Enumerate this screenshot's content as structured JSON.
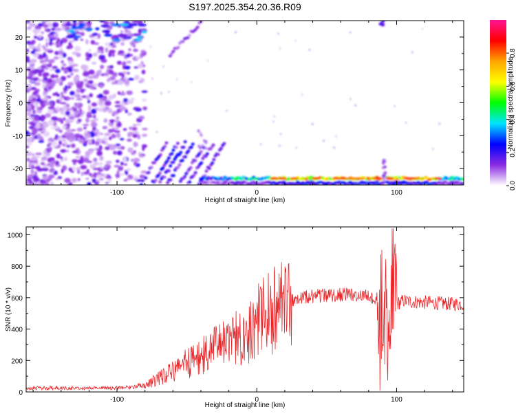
{
  "title": "S197.2025.354.20.36.R09",
  "colors": {
    "snr_line": "#e8262a",
    "axis": "#000000",
    "background": "#ffffff"
  },
  "spectrogram": {
    "type": "heatmap",
    "xlabel": "Height of straight line (km)",
    "ylabel": "Frequency (Hz)",
    "xlim": [
      -165,
      148
    ],
    "ylim": [
      -25,
      25
    ],
    "x_ticks": [
      -100,
      0,
      100
    ],
    "x_tick_labels": [
      "-100",
      "0",
      "100"
    ],
    "y_ticks": [
      -20,
      -10,
      0,
      10,
      20
    ],
    "y_tick_labels": [
      "-20",
      "-10",
      "0",
      "10",
      "20"
    ],
    "colorbar": {
      "label": "Normalized spectral amplitude",
      "range": [
        0,
        1
      ],
      "ticks": [
        0.0,
        0.2,
        0.4,
        0.6,
        0.8
      ],
      "tick_labels": [
        "0.0",
        "0.2",
        "0.4",
        "0.6",
        "0.8"
      ],
      "stops": [
        "#ffffff",
        "#8a2be2",
        "#0000ff",
        "#00e5ff",
        "#00ff00",
        "#ffff00",
        "#ffa500",
        "#ff0000",
        "#ff1493"
      ]
    },
    "features": {
      "noise_region_x": [
        -165,
        -80
      ],
      "band_frequency": -23,
      "band_x": [
        -40,
        148
      ],
      "band_peak_x": [
        10,
        130
      ],
      "rise_region_x": [
        -85,
        -30
      ],
      "feature_at_x": 90
    }
  },
  "snr": {
    "type": "line",
    "xlabel": "Height of straight line (km)",
    "ylabel": "SNR (10 * v/v)",
    "xlim": [
      -165,
      148
    ],
    "ylim": [
      0,
      1050
    ],
    "x_ticks": [
      -100,
      0,
      100
    ],
    "x_tick_labels": [
      "-100",
      "0",
      "100"
    ],
    "y_ticks": [
      0,
      200,
      400,
      600,
      800,
      1000
    ],
    "y_tick_labels": [
      "0",
      "200",
      "400",
      "600",
      "800",
      "1000"
    ]
  },
  "chart_data": [
    {
      "type": "heatmap",
      "title": "S197.2025.354.20.36.R09",
      "xlabel": "Height of straight line (km)",
      "ylabel": "Frequency (Hz)",
      "xlim": [
        -165,
        148
      ],
      "ylim": [
        -25,
        25
      ],
      "colorbar_label": "Normalized spectral amplitude",
      "colorbar_range": [
        0,
        1
      ]
    },
    {
      "type": "line",
      "xlabel": "Height of straight line (km)",
      "ylabel": "SNR (10 * v/v)",
      "xlim": [
        -165,
        148
      ],
      "ylim": [
        0,
        1050
      ],
      "series": [
        {
          "x": [
            -165,
            -140,
            -120,
            -100,
            -90,
            -80,
            -70,
            -60,
            -50,
            -40,
            -30,
            -20,
            -10,
            0,
            10,
            20,
            30,
            40,
            50,
            60,
            70,
            80,
            85,
            90,
            93,
            95,
            97,
            100,
            105,
            110,
            120,
            130,
            140,
            148
          ],
          "y": [
            25,
            25,
            25,
            25,
            30,
            40,
            90,
            130,
            180,
            220,
            270,
            320,
            370,
            440,
            510,
            560,
            600,
            610,
            615,
            620,
            615,
            610,
            600,
            580,
            500,
            400,
            480,
            560,
            580,
            575,
            570,
            565,
            560,
            560
          ]
        }
      ]
    }
  ]
}
